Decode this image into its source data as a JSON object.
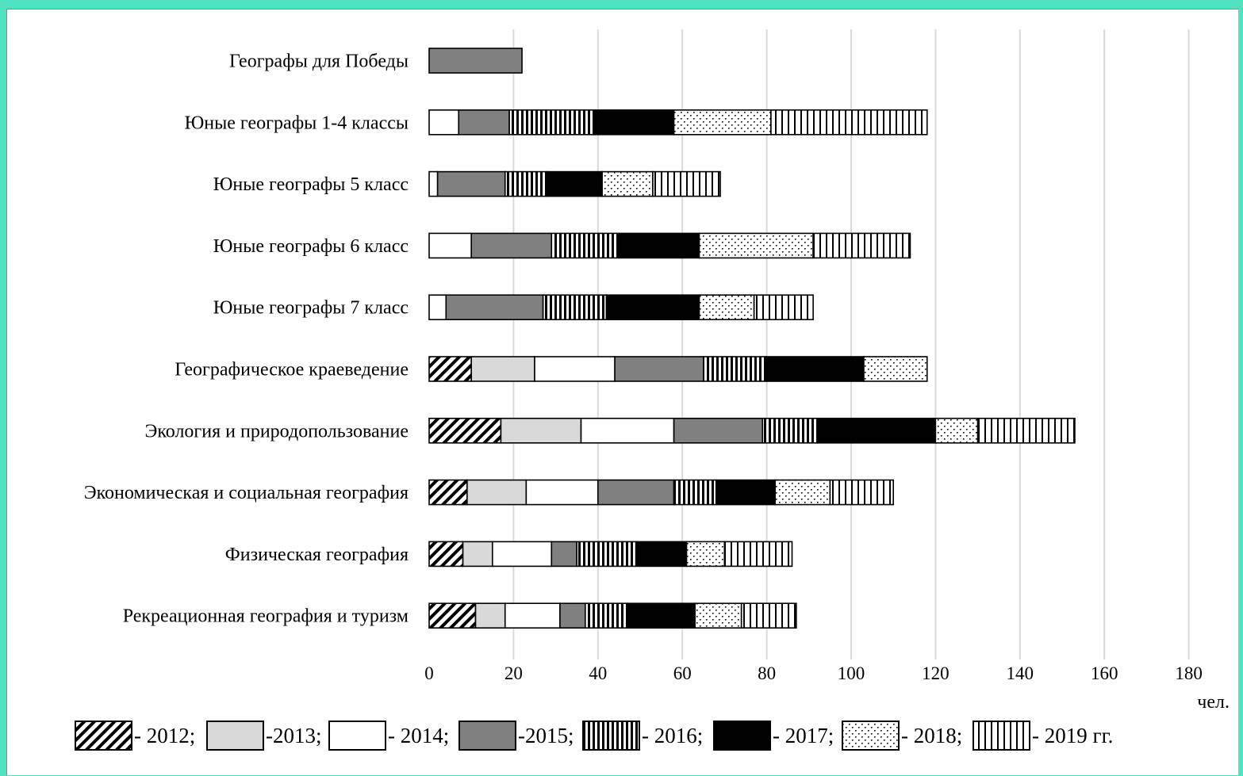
{
  "chart_data": {
    "type": "bar",
    "stacked": true,
    "orientation": "horizontal",
    "categories": [
      "Географы для Победы",
      "Юные географы 1-4 классы",
      "Юные географы 5 класс",
      "Юные географы 6 класс",
      "Юные географы 7 класс",
      "Географическое краеведение",
      "Экология и природопользование",
      "Экономическая и социальная география",
      "Физическая география",
      "Рекреационная география и туризм"
    ],
    "series": [
      {
        "name": "- 2012;",
        "pattern": "diagonal",
        "values": [
          0,
          0,
          0,
          0,
          0,
          10,
          17,
          9,
          8,
          11
        ]
      },
      {
        "name": "-2013;",
        "pattern": "light-gray",
        "values": [
          0,
          0,
          0,
          0,
          0,
          15,
          19,
          14,
          7,
          7
        ]
      },
      {
        "name": "- 2014;",
        "pattern": "white",
        "values": [
          0,
          7,
          2,
          10,
          4,
          19,
          22,
          17,
          14,
          13
        ]
      },
      {
        "name": "-2015;",
        "pattern": "gray",
        "values": [
          22,
          12,
          16,
          19,
          23,
          21,
          21,
          18,
          6,
          6
        ]
      },
      {
        "name": "- 2016;",
        "pattern": "vertical-thin",
        "values": [
          0,
          20,
          10,
          16,
          15,
          15,
          13,
          10,
          14,
          10
        ]
      },
      {
        "name": "- 2017;",
        "pattern": "black",
        "values": [
          0,
          19,
          13,
          19,
          22,
          23,
          28,
          14,
          12,
          16
        ]
      },
      {
        "name": "- 2018;",
        "pattern": "dotted",
        "values": [
          0,
          23,
          12,
          27,
          13,
          15,
          10,
          13,
          9,
          11
        ]
      },
      {
        "name": "- 2019 гг.",
        "pattern": "vertical-wide",
        "values": [
          0,
          37,
          16,
          23,
          14,
          0,
          23,
          15,
          16,
          13
        ]
      }
    ],
    "xlim": [
      0,
      180
    ],
    "xticks": [
      "0",
      "20",
      "40",
      "60",
      "80",
      "100",
      "120",
      "140",
      "160",
      "180"
    ],
    "xunit": "чел.",
    "grid": "vertical",
    "legend_position": "bottom",
    "colors": {
      "background": "#4fe3c1",
      "grid": "#d9d9d9",
      "light_gray": "#d9d9d9",
      "gray": "#808080",
      "black": "#000000"
    }
  }
}
